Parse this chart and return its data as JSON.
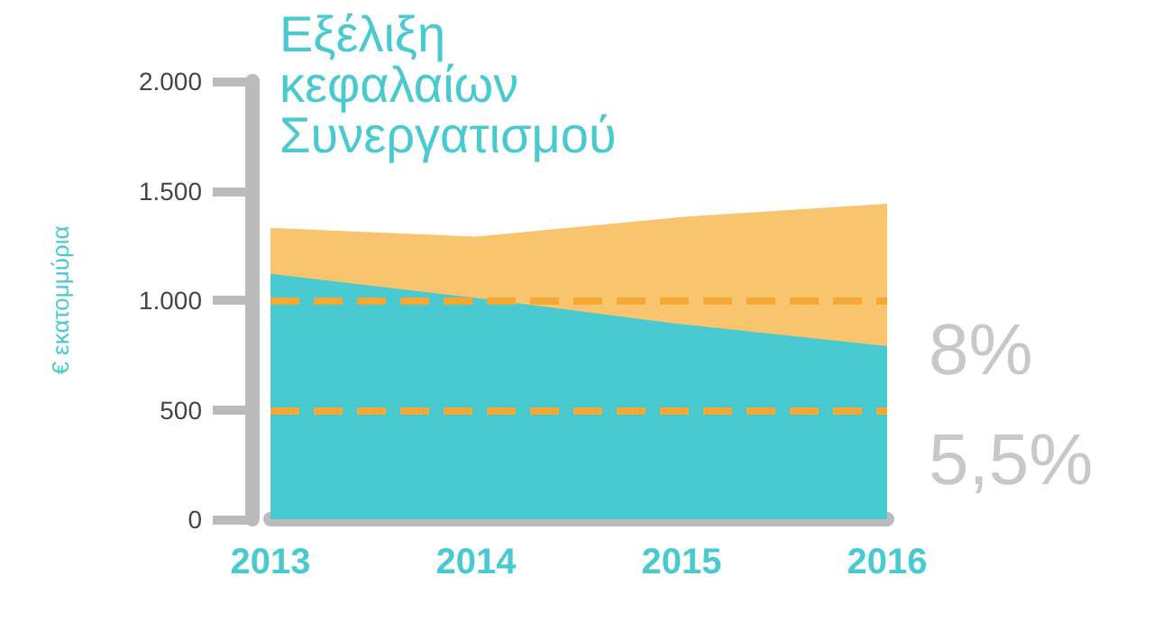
{
  "chart_data": {
    "type": "area",
    "title": "Εξέλιξη κεφαλαίων Συνεργατισμού",
    "ylabel": "€ εκατομμύρια",
    "categories": [
      "2013",
      "2014",
      "2015",
      "2016"
    ],
    "series": [
      {
        "color": "#f9c46e",
        "values": [
          1330,
          1290,
          1380,
          1440
        ]
      },
      {
        "color": "#48cad0",
        "values": [
          1120,
          1010,
          890,
          790
        ]
      }
    ],
    "ylim": [
      0,
      2000
    ],
    "yticks": [
      {
        "value": 0,
        "label": "0"
      },
      {
        "value": 500,
        "label": "500"
      },
      {
        "value": 1000,
        "label": "1.000"
      },
      {
        "value": 1500,
        "label": "1.500"
      },
      {
        "value": 2000,
        "label": "2.000"
      }
    ],
    "ref_lines": [
      {
        "axis": "y",
        "value": 1000,
        "color": "#f5a833",
        "line_style": "dashed"
      },
      {
        "axis": "y",
        "value": 500,
        "color": "#f5a833",
        "line_style": "dashed"
      }
    ],
    "annotations": [
      "8%",
      "5,5%"
    ],
    "grid": false
  }
}
